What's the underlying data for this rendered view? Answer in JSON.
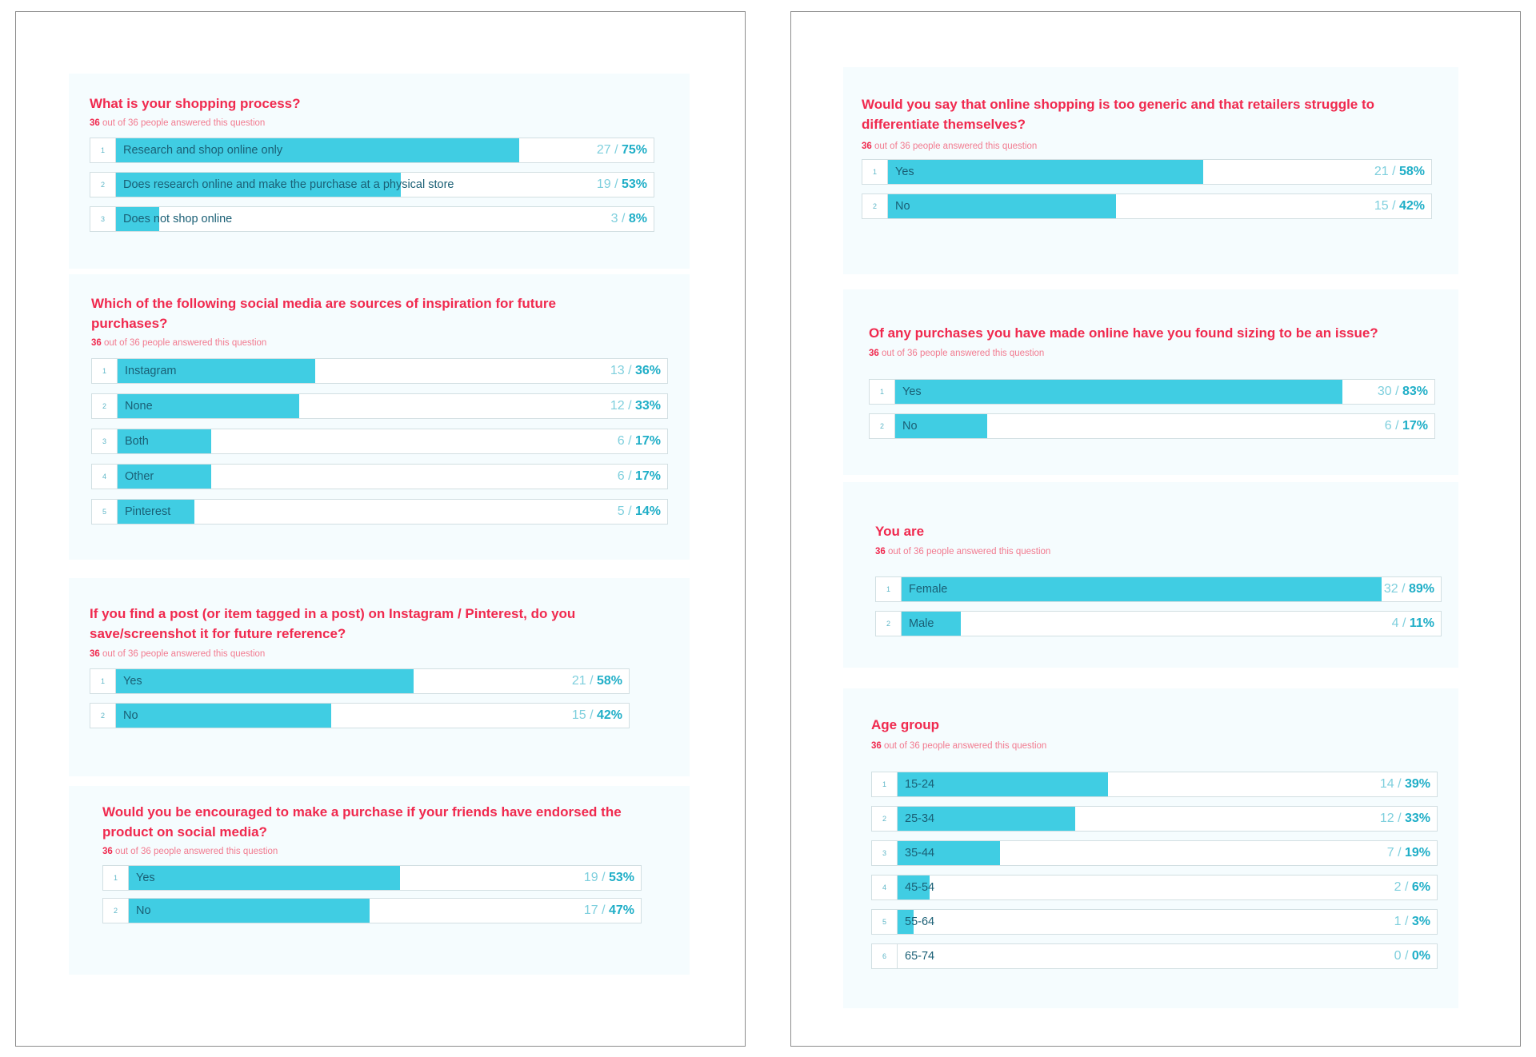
{
  "meta": {
    "answered_label": "out of 36 people answered this question",
    "answered_count": "36"
  },
  "questions": [
    {
      "title": "What is your shopping process?",
      "answered": "36",
      "options": [
        {
          "num": "1",
          "label": "Research and shop online only",
          "count": "27",
          "pct": "75%",
          "value": 75
        },
        {
          "num": "2",
          "label": "Does research online and make the purchase at a physical store",
          "count": "19",
          "pct": "53%",
          "value": 53
        },
        {
          "num": "3",
          "label": "Does not shop online",
          "count": "3",
          "pct": "8%",
          "value": 8
        }
      ]
    },
    {
      "title": "Which of the following social media are sources of inspiration for future purchases?",
      "answered": "36",
      "options": [
        {
          "num": "1",
          "label": "Instagram",
          "count": "13",
          "pct": "36%",
          "value": 36
        },
        {
          "num": "2",
          "label": "None",
          "count": "12",
          "pct": "33%",
          "value": 33
        },
        {
          "num": "3",
          "label": "Both",
          "count": "6",
          "pct": "17%",
          "value": 17
        },
        {
          "num": "4",
          "label": "Other",
          "count": "6",
          "pct": "17%",
          "value": 17
        },
        {
          "num": "5",
          "label": "Pinterest",
          "count": "5",
          "pct": "14%",
          "value": 14
        }
      ]
    },
    {
      "title": "If you find a post (or item tagged in a post) on Instagram / Pinterest, do you save/screenshot it for future reference?",
      "answered": "36",
      "options": [
        {
          "num": "1",
          "label": "Yes",
          "count": "21",
          "pct": "58%",
          "value": 58
        },
        {
          "num": "2",
          "label": "No",
          "count": "15",
          "pct": "42%",
          "value": 42
        }
      ]
    },
    {
      "title": "Would you be encouraged to make a purchase if your friends have endorsed the product on social media?",
      "answered": "36",
      "options": [
        {
          "num": "1",
          "label": "Yes",
          "count": "19",
          "pct": "53%",
          "value": 53
        },
        {
          "num": "2",
          "label": "No",
          "count": "17",
          "pct": "47%",
          "value": 47
        }
      ]
    },
    {
      "title": "Would you say that online shopping is too generic and that retailers struggle to differentiate themselves?",
      "answered": "36",
      "options": [
        {
          "num": "1",
          "label": "Yes",
          "count": "21",
          "pct": "58%",
          "value": 58
        },
        {
          "num": "2",
          "label": "No",
          "count": "15",
          "pct": "42%",
          "value": 42
        }
      ]
    },
    {
      "title": "Of any purchases you have made online have you found sizing to be an issue?",
      "answered": "36",
      "options": [
        {
          "num": "1",
          "label": "Yes",
          "count": "30",
          "pct": "83%",
          "value": 83
        },
        {
          "num": "2",
          "label": "No",
          "count": "6",
          "pct": "17%",
          "value": 17
        }
      ]
    },
    {
      "title": "You are",
      "answered": "36",
      "options": [
        {
          "num": "1",
          "label": "Female",
          "count": "32",
          "pct": "89%",
          "value": 89
        },
        {
          "num": "2",
          "label": "Male",
          "count": "4",
          "pct": "11%",
          "value": 11
        }
      ]
    },
    {
      "title": "Age group",
      "answered": "36",
      "options": [
        {
          "num": "1",
          "label": "15-24",
          "count": "14",
          "pct": "39%",
          "value": 39
        },
        {
          "num": "2",
          "label": "25-34",
          "count": "12",
          "pct": "33%",
          "value": 33
        },
        {
          "num": "3",
          "label": "35-44",
          "count": "7",
          "pct": "19%",
          "value": 19
        },
        {
          "num": "4",
          "label": "45-54",
          "count": "2",
          "pct": "6%",
          "value": 6
        },
        {
          "num": "5",
          "label": "55-64",
          "count": "1",
          "pct": "3%",
          "value": 3
        },
        {
          "num": "6",
          "label": "65-74",
          "count": "0",
          "pct": "0%",
          "value": 0
        }
      ]
    }
  ],
  "colors": {
    "accent_red": "#f0294e",
    "bar_fill": "#40cde3",
    "pct_text": "#1faec7",
    "card_bg": "#f5fcfe"
  }
}
